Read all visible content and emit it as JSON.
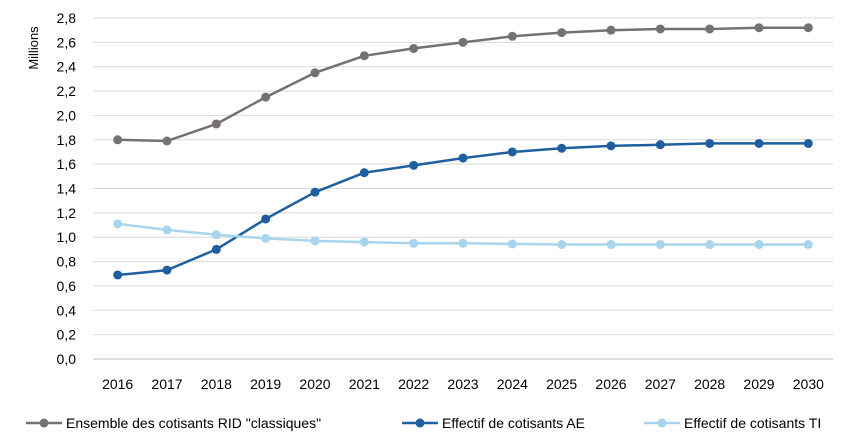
{
  "chart_data": {
    "type": "line",
    "ylabel": "Millions",
    "ylim": [
      0,
      2.8
    ],
    "ytick_step": 0.2,
    "ytick_labels": [
      "0,0",
      "0,2",
      "0,4",
      "0,6",
      "0,8",
      "1,0",
      "1,2",
      "1,4",
      "1,6",
      "1,8",
      "2,0",
      "2,2",
      "2,4",
      "2,6",
      "2,8"
    ],
    "grid": true,
    "legend_position": "bottom",
    "x": [
      "2016",
      "2017",
      "2018",
      "2019",
      "2020",
      "2021",
      "2022",
      "2023",
      "2024",
      "2025",
      "2026",
      "2027",
      "2028",
      "2029",
      "2030"
    ],
    "series": [
      {
        "name": "Ensemble des cotisants RID \"classiques\"",
        "color": "#767171",
        "values": [
          1.8,
          1.79,
          1.93,
          2.15,
          2.35,
          2.49,
          2.55,
          2.6,
          2.65,
          2.68,
          2.7,
          2.71,
          2.71,
          2.72,
          2.72
        ]
      },
      {
        "name": "Effectif de cotisants AE",
        "color": "#1f5f9f",
        "values": [
          0.69,
          0.73,
          0.9,
          1.15,
          1.37,
          1.53,
          1.59,
          1.65,
          1.7,
          1.73,
          1.75,
          1.76,
          1.77,
          1.77,
          1.77
        ]
      },
      {
        "name": "Effectif de cotisants TI",
        "color": "#a9d4ee",
        "values": [
          1.11,
          1.06,
          1.02,
          0.99,
          0.97,
          0.96,
          0.95,
          0.95,
          0.945,
          0.94,
          0.94,
          0.94,
          0.94,
          0.94,
          0.94
        ]
      }
    ]
  }
}
